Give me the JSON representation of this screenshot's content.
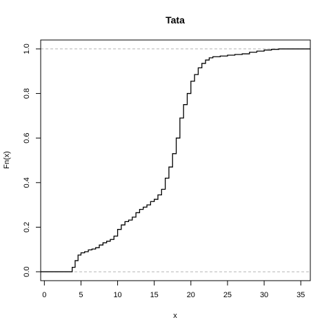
{
  "chart_data": {
    "type": "line",
    "title": "Tata",
    "xlabel": "x",
    "ylabel": "Fn(x)",
    "xlim": [
      -0.5,
      36.3
    ],
    "ylim": [
      -0.04,
      1.04
    ],
    "x_ticks": [
      0,
      5,
      10,
      15,
      20,
      25,
      30,
      35
    ],
    "y_ticks": [
      0.0,
      0.2,
      0.4,
      0.6,
      0.8,
      1.0
    ],
    "x_tick_labels": [
      "0",
      "5",
      "10",
      "15",
      "20",
      "25",
      "30",
      "35"
    ],
    "y_tick_labels": [
      "0.0",
      "0.2",
      "0.4",
      "0.6",
      "0.8",
      "1.0"
    ],
    "reference_lines": [
      0,
      1
    ],
    "step_function": true,
    "series": [
      {
        "x": [
          -0.5,
          3.4,
          3.8,
          4.2,
          4.6,
          5.0,
          5.5,
          6.0,
          6.5,
          7.0,
          7.5,
          8.0,
          8.5,
          9.0,
          9.5,
          10.0,
          10.5,
          11.0,
          11.5,
          12.0,
          12.5,
          13.0,
          13.5,
          14.0,
          14.5,
          15.0,
          15.5,
          16.0,
          16.5,
          17.0,
          17.5,
          18.0,
          18.5,
          19.0,
          19.5,
          20.0,
          20.5,
          21.0,
          21.5,
          22.0,
          22.5,
          23.0,
          24.0,
          25.0,
          26.0,
          27.0,
          28.0,
          29.0,
          30.0,
          31.0,
          32.0,
          36.3
        ],
        "y": [
          0.0,
          0.0,
          0.02,
          0.05,
          0.075,
          0.085,
          0.09,
          0.098,
          0.102,
          0.108,
          0.12,
          0.13,
          0.137,
          0.145,
          0.16,
          0.19,
          0.21,
          0.225,
          0.232,
          0.245,
          0.265,
          0.28,
          0.29,
          0.3,
          0.315,
          0.325,
          0.345,
          0.37,
          0.42,
          0.47,
          0.53,
          0.6,
          0.69,
          0.75,
          0.8,
          0.855,
          0.885,
          0.915,
          0.935,
          0.95,
          0.96,
          0.965,
          0.968,
          0.972,
          0.975,
          0.978,
          0.985,
          0.99,
          0.995,
          0.998,
          1.0,
          1.0
        ]
      }
    ]
  }
}
